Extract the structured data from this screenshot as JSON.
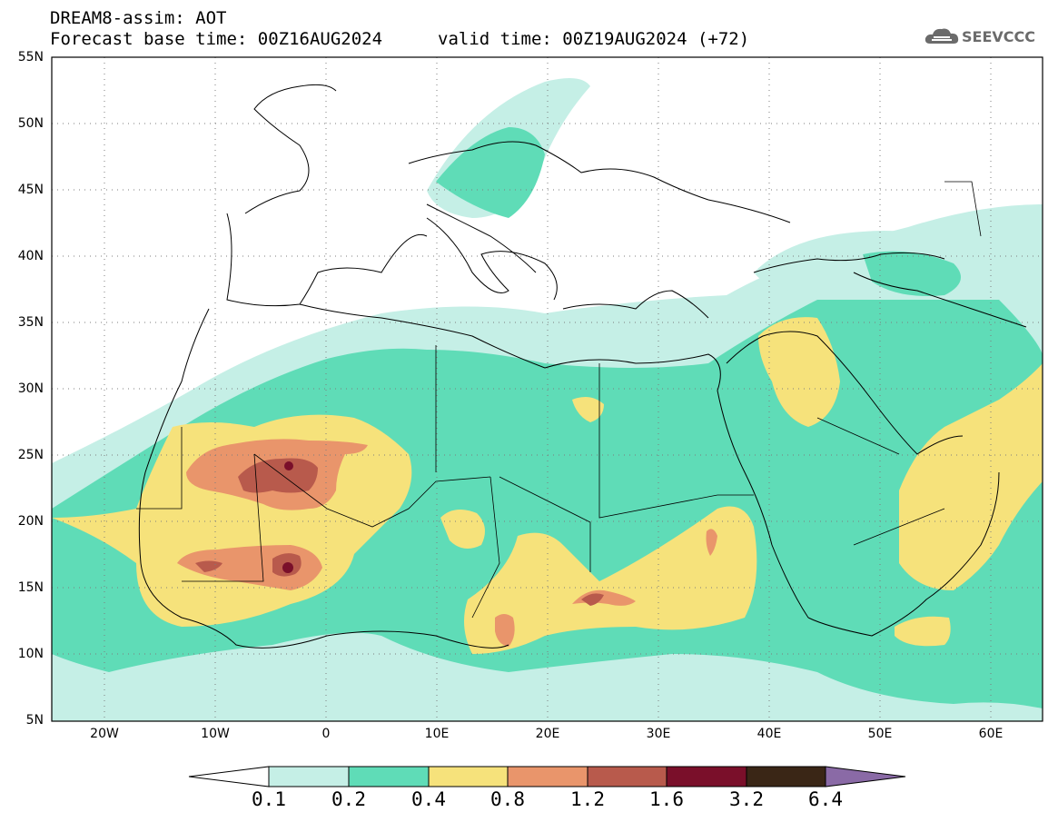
{
  "header": {
    "line1": "DREAM8-assim: AOT",
    "line2": "Forecast base time: 00Z16AUG2024",
    "line3": "valid time: 00Z19AUG2024 (+72)"
  },
  "logo": {
    "text": "SEEVCCC",
    "icon": "cloud-icon"
  },
  "map": {
    "lat_labels": [
      "55N",
      "50N",
      "45N",
      "40N",
      "35N",
      "30N",
      "25N",
      "20N",
      "15N",
      "10N",
      "5N"
    ],
    "lon_labels": [
      "20W",
      "10W",
      "0",
      "10E",
      "20E",
      "30E",
      "40E",
      "50E",
      "60E"
    ]
  },
  "colorbar": {
    "ticks": [
      "0.1",
      "0.2",
      "0.4",
      "0.8",
      "1.2",
      "1.6",
      "3.2",
      "6.4"
    ],
    "colors": [
      "#ffffff",
      "#c5efe6",
      "#5fdcb7",
      "#f6e27b",
      "#e9956b",
      "#b85a4c",
      "#7a0f2a",
      "#3a2616",
      "#8a6aa6"
    ]
  }
}
